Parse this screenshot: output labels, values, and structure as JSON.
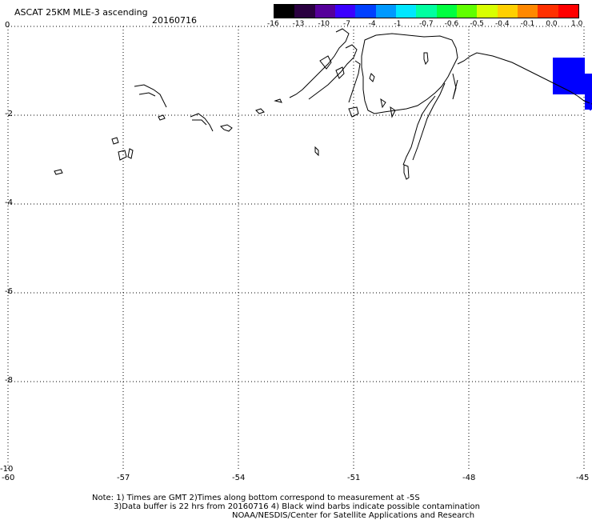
{
  "header": {
    "title": "ASCAT 25KM MLE-3 ascending",
    "date": "20160716"
  },
  "colorbar": {
    "labels": [
      "-16",
      "-13",
      "-10",
      "-7",
      "-4",
      "-1",
      "-0.7",
      "-0.6",
      "-0.5",
      "-0.4",
      "-0.1",
      "0.0",
      "1.0"
    ],
    "colors": [
      "#000000",
      "#2a0040",
      "#55009a",
      "#3a00ff",
      "#0040ff",
      "#0099ff",
      "#00e6ff",
      "#00ffa0",
      "#00ff40",
      "#60ff00",
      "#d8ff00",
      "#ffd000",
      "#ff8800",
      "#ff3000",
      "#ff0000"
    ]
  },
  "map": {
    "lat_labels": [
      "0",
      "-2",
      "-4",
      "-6",
      "-8",
      "-10"
    ],
    "lon_labels": [
      "-60",
      "-57",
      "-54",
      "-51",
      "-48",
      "-45"
    ],
    "data_color": "#0000ff"
  },
  "notes": {
    "line1": "Note: 1) Times are GMT 2)Times along bottom correspond to measurement at -5S",
    "line2": "3)Data buffer is 22 hrs from 20160716 4) Black wind barbs indicate possible contamination",
    "line3": "NOAA/NESDIS/Center for Satellite Applications and Research"
  }
}
